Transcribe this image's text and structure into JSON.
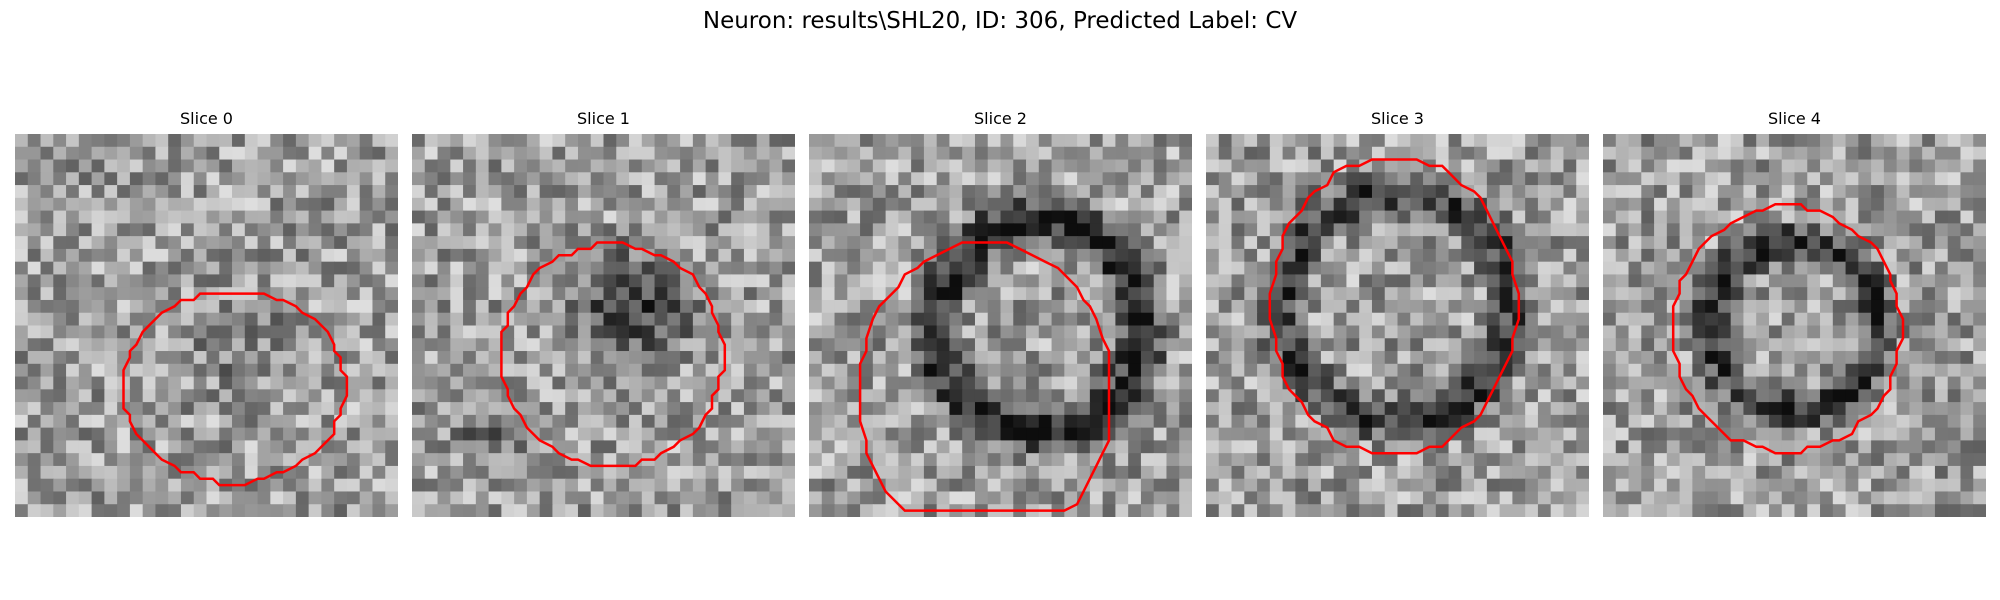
{
  "figure": {
    "suptitle": "Neuron: results\\SHL20, ID: 306, Predicted Label: CV"
  },
  "panels": [
    {
      "title": "Slice 0"
    },
    {
      "title": "Slice 1"
    },
    {
      "title": "Slice 2"
    },
    {
      "title": "Slice 3"
    },
    {
      "title": "Slice 4"
    }
  ],
  "colors": {
    "contour": "#ff0000",
    "background": "#ffffff"
  }
}
